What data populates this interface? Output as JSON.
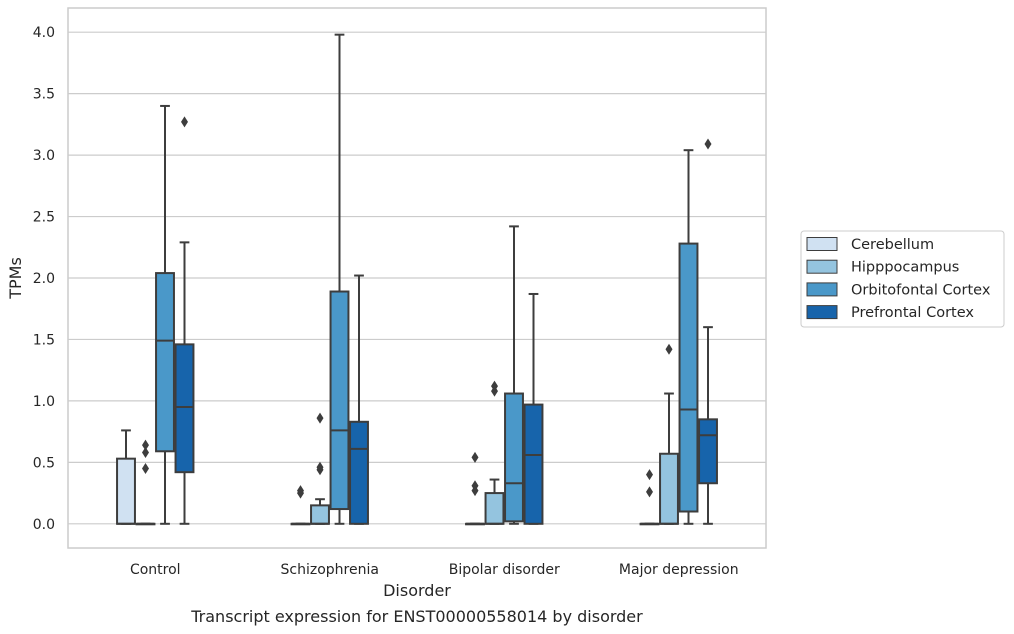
{
  "chart_data": {
    "type": "box",
    "caption": "Transcript expression for ENST00000558014 by disorder",
    "xlabel": "Disorder",
    "ylabel": "TPMs",
    "ylim": [
      -0.19,
      4.19
    ],
    "yticks": [
      "0.0",
      "0.5",
      "1.0",
      "1.5",
      "2.0",
      "2.5",
      "3.0",
      "3.5",
      "4.0"
    ],
    "grid": true,
    "legend_placement": "right",
    "categories": [
      "Control",
      "Schizophrenia",
      "Bipolar disorder",
      "Major depression"
    ],
    "series": [
      {
        "name": "Cerebellum",
        "color": "#d0e1f2",
        "boxes": [
          {
            "min": 0,
            "q1": 0,
            "median": 0,
            "q3": 0.53,
            "max": 0.76,
            "outliers": []
          },
          {
            "min": 0,
            "q1": 0,
            "median": 0,
            "q3": 0,
            "max": 0,
            "outliers": [
              0.25,
              0.27
            ]
          },
          {
            "min": 0,
            "q1": 0,
            "median": 0,
            "q3": 0,
            "max": 0,
            "outliers": [
              0.27,
              0.31,
              0.54
            ]
          },
          {
            "min": 0,
            "q1": 0,
            "median": 0,
            "q3": 0,
            "max": 0,
            "outliers": [
              0.26,
              0.4
            ]
          }
        ]
      },
      {
        "name": "Hipppocampus",
        "color": "#94c4df",
        "boxes": [
          {
            "min": 0,
            "q1": 0,
            "median": 0,
            "q3": 0,
            "max": 0,
            "outliers": [
              0.45,
              0.58,
              0.64
            ]
          },
          {
            "min": 0,
            "q1": 0,
            "median": 0,
            "q3": 0.15,
            "max": 0.2,
            "outliers": [
              0.44,
              0.46,
              0.86
            ]
          },
          {
            "min": 0,
            "q1": 0,
            "median": 0,
            "q3": 0.25,
            "max": 0.36,
            "outliers": [
              1.08,
              1.12
            ]
          },
          {
            "min": 0,
            "q1": 0,
            "median": 0,
            "q3": 0.57,
            "max": 1.06,
            "outliers": [
              1.42
            ]
          }
        ]
      },
      {
        "name": "Orbitofontal Cortex",
        "color": "#4a98c9",
        "boxes": [
          {
            "min": 0,
            "q1": 0.59,
            "median": 1.49,
            "q3": 2.04,
            "max": 3.4,
            "outliers": []
          },
          {
            "min": 0,
            "q1": 0.12,
            "median": 0.76,
            "q3": 1.89,
            "max": 3.98,
            "outliers": []
          },
          {
            "min": 0,
            "q1": 0.02,
            "median": 0.33,
            "q3": 1.06,
            "max": 2.42,
            "outliers": []
          },
          {
            "min": 0,
            "q1": 0.1,
            "median": 0.93,
            "q3": 2.28,
            "max": 3.04,
            "outliers": []
          }
        ]
      },
      {
        "name": "Prefrontal Cortex",
        "color": "#1764ab",
        "boxes": [
          {
            "min": 0,
            "q1": 0.42,
            "median": 0.95,
            "q3": 1.46,
            "max": 2.29,
            "outliers": [
              3.27
            ]
          },
          {
            "min": 0,
            "q1": 0,
            "median": 0.61,
            "q3": 0.83,
            "max": 2.02,
            "outliers": []
          },
          {
            "min": 0,
            "q1": 0,
            "median": 0.56,
            "q3": 0.97,
            "max": 1.87,
            "outliers": []
          },
          {
            "min": 0,
            "q1": 0.33,
            "median": 0.72,
            "q3": 0.85,
            "max": 1.6,
            "outliers": [
              3.09
            ]
          }
        ]
      }
    ]
  }
}
